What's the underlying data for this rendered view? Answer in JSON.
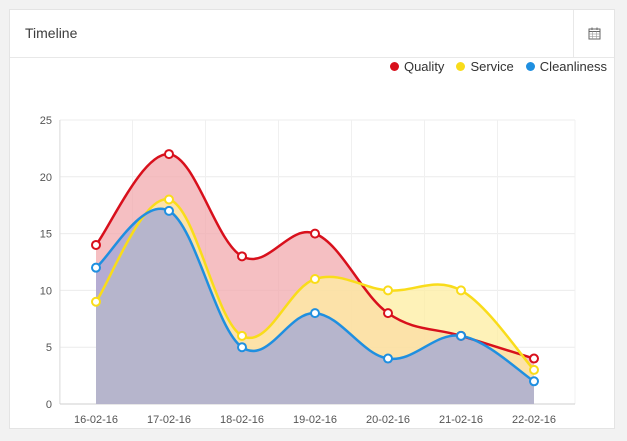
{
  "panel": {
    "title": "Timeline"
  },
  "icons": {
    "calendar": "calendar-icon"
  },
  "chart_data": {
    "type": "area",
    "categories": [
      "16-02-16",
      "17-02-16",
      "18-02-16",
      "19-02-16",
      "20-02-16",
      "21-02-16",
      "22-02-16"
    ],
    "series": [
      {
        "name": "Quality",
        "color": "#d8101c",
        "fill": "#f2a9ad",
        "values": [
          14,
          22,
          13,
          15,
          8,
          6,
          4
        ]
      },
      {
        "name": "Service",
        "color": "#f9dc1a",
        "fill": "#fdeea0",
        "values": [
          9,
          18,
          6,
          11,
          10,
          10,
          3
        ]
      },
      {
        "name": "Cleanliness",
        "color": "#1f8fe0",
        "fill": "#9fa5d8",
        "values": [
          12,
          17,
          5,
          8,
          4,
          6,
          2
        ]
      }
    ],
    "ylim": [
      0,
      25
    ],
    "yticks": [
      0,
      5,
      10,
      15,
      20,
      25
    ],
    "grid": true,
    "legend": "top-right",
    "xlabel": "",
    "ylabel": ""
  }
}
